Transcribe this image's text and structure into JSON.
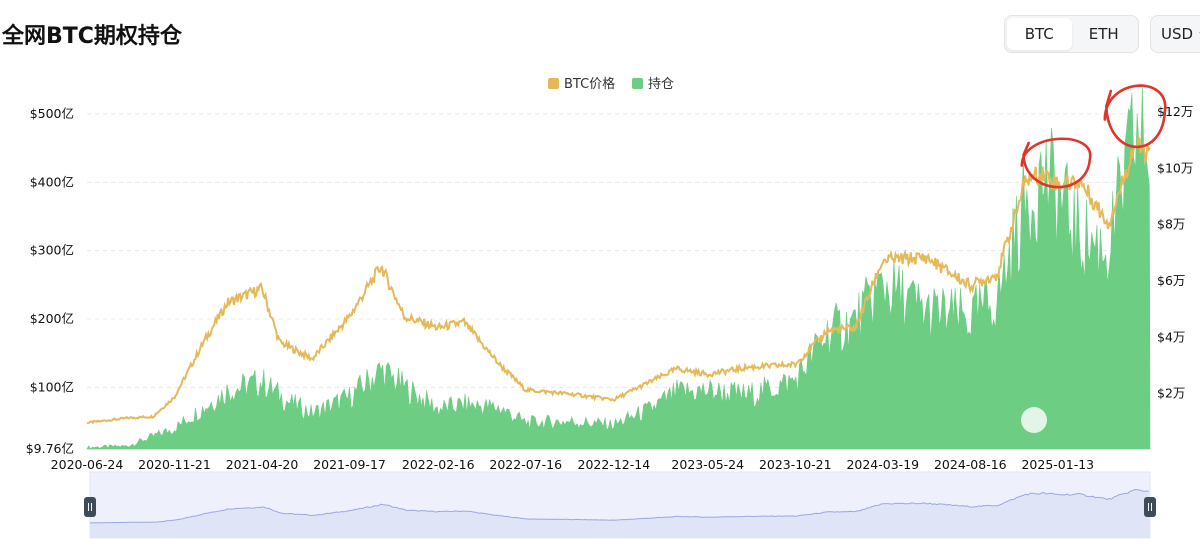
{
  "header": {
    "title": "全网BTC期权持仓",
    "toggle": [
      {
        "label": "BTC",
        "active": true
      },
      {
        "label": "ETH",
        "active": false
      }
    ],
    "currency": "USD"
  },
  "colors": {
    "price": "#e5b95a",
    "oi": "#6ccd83",
    "annotation": "#e0352b",
    "grid": "#e8e8e8",
    "navigator_fill": "#dfe4f7",
    "navigator_line": "#9aa8df"
  },
  "chart_data": {
    "type": "area",
    "legend": [
      "BTC价格",
      "持仓"
    ],
    "legend_position": "top-center",
    "left_axis": {
      "ticks": [
        "$9.76亿",
        "$100亿",
        "$200亿",
        "$300亿",
        "$400亿",
        "$500亿"
      ],
      "values": [
        9.76,
        100,
        200,
        300,
        400,
        500
      ],
      "range": [
        9.76,
        500
      ]
    },
    "right_axis": {
      "ticks": [
        "$2万",
        "$4万",
        "$6万",
        "$8万",
        "$10万",
        "$12万"
      ],
      "values": [
        20000,
        40000,
        60000,
        80000,
        100000,
        120000
      ],
      "range": [
        0,
        120000
      ]
    },
    "x_ticks": [
      "2020-06-24",
      "2020-11-21",
      "2021-04-20",
      "2021-09-17",
      "2022-02-16",
      "2022-07-16",
      "2022-12-14",
      "2023-05-24",
      "2023-10-21",
      "2024-03-19",
      "2024-08-16",
      "2025-01-13"
    ],
    "grid": true,
    "series": [
      {
        "name": "持仓",
        "axis": "left",
        "points": [
          [
            "2020-06-24",
            12
          ],
          [
            "2020-09-01",
            14
          ],
          [
            "2020-11-21",
            40
          ],
          [
            "2021-01-10",
            70
          ],
          [
            "2021-02-20",
            95
          ],
          [
            "2021-04-20",
            108
          ],
          [
            "2021-06-01",
            80
          ],
          [
            "2021-07-15",
            62
          ],
          [
            "2021-09-17",
            85
          ],
          [
            "2021-11-10",
            125
          ],
          [
            "2021-12-20",
            100
          ],
          [
            "2022-02-16",
            68
          ],
          [
            "2022-04-01",
            75
          ],
          [
            "2022-06-01",
            70
          ],
          [
            "2022-07-16",
            48
          ],
          [
            "2022-10-01",
            50
          ],
          [
            "2022-12-14",
            45
          ],
          [
            "2023-02-15",
            68
          ],
          [
            "2023-04-01",
            92
          ],
          [
            "2023-05-24",
            95
          ],
          [
            "2023-08-01",
            88
          ],
          [
            "2023-10-21",
            110
          ],
          [
            "2023-12-15",
            180
          ],
          [
            "2024-02-01",
            195
          ],
          [
            "2024-03-19",
            250
          ],
          [
            "2024-06-01",
            210
          ],
          [
            "2024-08-16",
            200
          ],
          [
            "2024-10-01",
            230
          ],
          [
            "2024-11-20",
            370
          ],
          [
            "2024-12-20",
            410
          ],
          [
            "2025-01-13",
            380
          ],
          [
            "2025-02-20",
            320
          ],
          [
            "2025-04-10",
            300
          ],
          [
            "2025-05-25",
            470
          ],
          [
            "2025-06-20",
            440
          ]
        ]
      },
      {
        "name": "BTC价格",
        "axis": "right",
        "points": [
          [
            "2020-06-24",
            9300
          ],
          [
            "2020-09-01",
            11000
          ],
          [
            "2020-10-15",
            11500
          ],
          [
            "2020-11-21",
            18500
          ],
          [
            "2021-01-10",
            38000
          ],
          [
            "2021-02-20",
            52000
          ],
          [
            "2021-04-20",
            57000
          ],
          [
            "2021-05-20",
            38000
          ],
          [
            "2021-07-15",
            32000
          ],
          [
            "2021-09-17",
            47000
          ],
          [
            "2021-11-10",
            65000
          ],
          [
            "2021-12-20",
            47000
          ],
          [
            "2022-02-16",
            43000
          ],
          [
            "2022-04-01",
            45000
          ],
          [
            "2022-06-01",
            30000
          ],
          [
            "2022-07-16",
            21000
          ],
          [
            "2022-10-01",
            19500
          ],
          [
            "2022-12-14",
            17500
          ],
          [
            "2023-02-15",
            24000
          ],
          [
            "2023-04-01",
            28500
          ],
          [
            "2023-05-24",
            26500
          ],
          [
            "2023-08-01",
            29000
          ],
          [
            "2023-10-21",
            30000
          ],
          [
            "2023-12-15",
            42000
          ],
          [
            "2024-02-01",
            43000
          ],
          [
            "2024-03-19",
            67000
          ],
          [
            "2024-06-01",
            68000
          ],
          [
            "2024-08-16",
            58000
          ],
          [
            "2024-10-01",
            62000
          ],
          [
            "2024-11-20",
            96000
          ],
          [
            "2024-12-20",
            98000
          ],
          [
            "2025-01-13",
            94000
          ],
          [
            "2025-02-20",
            95000
          ],
          [
            "2025-04-10",
            80000
          ],
          [
            "2025-05-25",
            108000
          ],
          [
            "2025-06-20",
            104000
          ]
        ]
      }
    ],
    "annotations": [
      {
        "type": "circle",
        "near": [
          "2024-12-20",
          410
        ]
      },
      {
        "type": "circle",
        "near": [
          "2025-05-25",
          470
        ]
      }
    ],
    "navigator": true
  }
}
